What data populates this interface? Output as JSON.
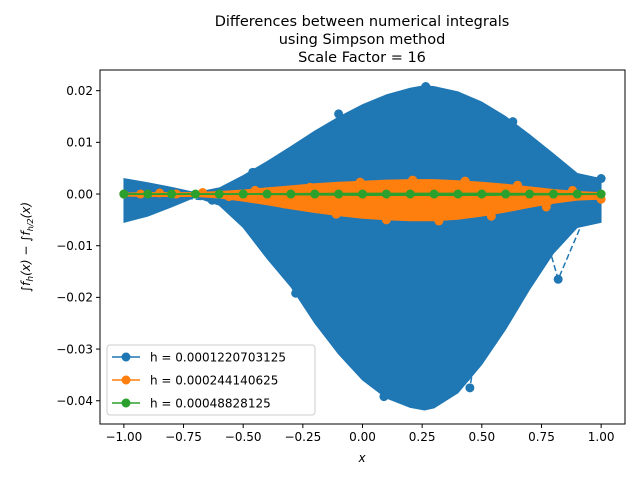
{
  "chart_data": {
    "type": "line",
    "title_lines": [
      "Differences between numerical integrals",
      "using Simpson method",
      "Scale Factor = 16"
    ],
    "xlabel": "x",
    "ylabel": "∫f_h(x) − ∫f_{h/2}(x)",
    "xlim": [
      -1.1,
      1.1
    ],
    "ylim": [
      -0.0445,
      0.024
    ],
    "xticks": [
      -1.0,
      -0.75,
      -0.5,
      -0.25,
      0.0,
      0.25,
      0.5,
      0.75,
      1.0
    ],
    "xtick_labels": [
      "−1.00",
      "−0.75",
      "−0.50",
      "−0.25",
      "0.00",
      "0.25",
      "0.50",
      "0.75",
      "1.00"
    ],
    "yticks": [
      -0.04,
      -0.03,
      -0.02,
      -0.01,
      0.0,
      0.01,
      0.02
    ],
    "ytick_labels": [
      "−0.04",
      "−0.03",
      "−0.02",
      "−0.01",
      "0.00",
      "0.01",
      "0.02"
    ],
    "grid": false,
    "legend_position": "lower-left",
    "series": [
      {
        "name": "h = 0.0001220703125",
        "color": "#1f77b4",
        "envelope": {
          "x": [
            -1.0,
            -0.9,
            -0.8,
            -0.7,
            -0.6,
            -0.5,
            -0.4,
            -0.3,
            -0.2,
            -0.1,
            0.0,
            0.1,
            0.2,
            0.26,
            0.3,
            0.4,
            0.5,
            0.6,
            0.7,
            0.8,
            0.9,
            1.0
          ],
          "upper": [
            0.003,
            0.0022,
            0.0013,
            0.0003,
            0.0012,
            0.0036,
            0.0063,
            0.0092,
            0.0122,
            0.0149,
            0.0173,
            0.0192,
            0.0205,
            0.021,
            0.0208,
            0.0198,
            0.0178,
            0.015,
            0.0115,
            0.0078,
            0.004,
            0.003
          ],
          "lower": [
            -0.0055,
            -0.0043,
            -0.0025,
            -0.0006,
            -0.0022,
            -0.0065,
            -0.0125,
            -0.018,
            -0.025,
            -0.031,
            -0.036,
            -0.0395,
            -0.0413,
            -0.0418,
            -0.0414,
            -0.0385,
            -0.033,
            -0.0262,
            -0.0185,
            -0.0115,
            -0.0065,
            -0.0055
          ]
        },
        "markers": [
          {
            "x": -1.0,
            "y": 0.0
          },
          {
            "x": -0.63,
            "y": -0.0012
          },
          {
            "x": -0.46,
            "y": 0.0042
          },
          {
            "x": -0.28,
            "y": -0.0192
          },
          {
            "x": -0.1,
            "y": 0.0155
          },
          {
            "x": 0.09,
            "y": -0.0392
          },
          {
            "x": 0.265,
            "y": 0.0208
          },
          {
            "x": 0.45,
            "y": -0.0375
          },
          {
            "x": 0.63,
            "y": 0.014
          },
          {
            "x": 0.82,
            "y": -0.0165
          },
          {
            "x": 1.0,
            "y": 0.003
          }
        ]
      },
      {
        "name": "h = 0.000244140625",
        "color": "#ff7f0e",
        "envelope": {
          "x": [
            -1.0,
            -0.9,
            -0.8,
            -0.7,
            -0.6,
            -0.5,
            -0.4,
            -0.3,
            -0.2,
            -0.1,
            0.0,
            0.1,
            0.2,
            0.3,
            0.4,
            0.5,
            0.6,
            0.7,
            0.8,
            0.9,
            1.0
          ],
          "upper": [
            0.0002,
            0.0003,
            0.0003,
            0.0003,
            0.0005,
            0.0008,
            0.0012,
            0.0016,
            0.002,
            0.0023,
            0.0025,
            0.0027,
            0.0028,
            0.0028,
            0.0026,
            0.0023,
            0.0019,
            0.0014,
            0.0009,
            0.0005,
            0.0003
          ],
          "lower": [
            -0.0004,
            -0.0005,
            -0.0005,
            -0.0005,
            -0.0008,
            -0.0014,
            -0.0021,
            -0.0029,
            -0.0036,
            -0.0042,
            -0.0047,
            -0.005,
            -0.0052,
            -0.0052,
            -0.0049,
            -0.0043,
            -0.0035,
            -0.0026,
            -0.0018,
            -0.0012,
            -0.001
          ]
        },
        "markers": [
          {
            "x": -1.0,
            "y": 0.0
          },
          {
            "x": -0.93,
            "y": 0.0
          },
          {
            "x": -0.85,
            "y": 0.0002
          },
          {
            "x": -0.78,
            "y": 0.0
          },
          {
            "x": -0.67,
            "y": 0.0003
          },
          {
            "x": -0.56,
            "y": -0.0005
          },
          {
            "x": -0.45,
            "y": 0.0007
          },
          {
            "x": -0.33,
            "y": -0.0019
          },
          {
            "x": -0.22,
            "y": 0.0013
          },
          {
            "x": -0.11,
            "y": -0.0039
          },
          {
            "x": -0.01,
            "y": 0.0023
          },
          {
            "x": 0.1,
            "y": -0.005
          },
          {
            "x": 0.21,
            "y": 0.0027
          },
          {
            "x": 0.32,
            "y": -0.0052
          },
          {
            "x": 0.43,
            "y": 0.0025
          },
          {
            "x": 0.54,
            "y": -0.0043
          },
          {
            "x": 0.65,
            "y": 0.0017
          },
          {
            "x": 0.77,
            "y": -0.0025
          },
          {
            "x": 0.88,
            "y": 0.0007
          },
          {
            "x": 1.0,
            "y": -0.001
          }
        ]
      },
      {
        "name": "h = 0.00048828125",
        "color": "#2ca02c",
        "envelope": {
          "x": [
            -1.0,
            -0.5,
            0.0,
            0.25,
            0.5,
            1.0
          ],
          "upper": [
            0.0001,
            0.0001,
            0.0002,
            0.0002,
            0.0002,
            0.0001
          ],
          "lower": [
            -0.0001,
            -0.0001,
            -0.0003,
            -0.0003,
            -0.0003,
            -0.0001
          ]
        },
        "markers": [
          {
            "x": -1.0,
            "y": 0.0
          },
          {
            "x": -0.9,
            "y": 0.0
          },
          {
            "x": -0.8,
            "y": 0.0
          },
          {
            "x": -0.7,
            "y": 0.0
          },
          {
            "x": -0.6,
            "y": 0.0
          },
          {
            "x": -0.5,
            "y": 0.0
          },
          {
            "x": -0.4,
            "y": 0.0
          },
          {
            "x": -0.3,
            "y": 0.0
          },
          {
            "x": -0.2,
            "y": 0.0
          },
          {
            "x": -0.1,
            "y": 0.0
          },
          {
            "x": 0.0,
            "y": 0.0
          },
          {
            "x": 0.1,
            "y": 0.0
          },
          {
            "x": 0.2,
            "y": 0.0
          },
          {
            "x": 0.3,
            "y": 0.0
          },
          {
            "x": 0.4,
            "y": 0.0
          },
          {
            "x": 0.5,
            "y": 0.0
          },
          {
            "x": 0.6,
            "y": 0.0
          },
          {
            "x": 0.7,
            "y": 0.0
          },
          {
            "x": 0.8,
            "y": 0.0
          },
          {
            "x": 0.9,
            "y": 0.0
          },
          {
            "x": 1.0,
            "y": 0.0
          }
        ]
      }
    ]
  }
}
